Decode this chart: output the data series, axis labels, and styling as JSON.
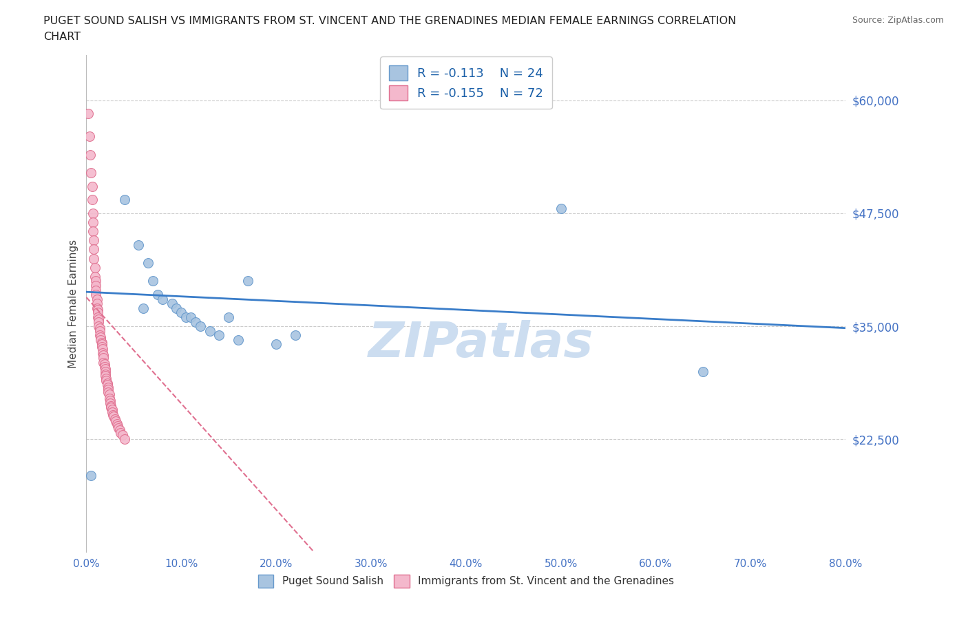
{
  "title_line1": "PUGET SOUND SALISH VS IMMIGRANTS FROM ST. VINCENT AND THE GRENADINES MEDIAN FEMALE EARNINGS CORRELATION",
  "title_line2": "CHART",
  "source_text": "Source: ZipAtlas.com",
  "ylabel": "Median Female Earnings",
  "xlim": [
    0,
    0.8
  ],
  "ylim": [
    10000,
    65000
  ],
  "yticks": [
    22500,
    35000,
    47500,
    60000
  ],
  "ytick_labels": [
    "$22,500",
    "$35,000",
    "$47,500",
    "$60,000"
  ],
  "xticks": [
    0.0,
    0.1,
    0.2,
    0.3,
    0.4,
    0.5,
    0.6,
    0.7,
    0.8
  ],
  "xtick_labels": [
    "0.0%",
    "",
    "",
    "",
    "",
    "",
    "",
    "",
    "80.0%"
  ],
  "blue_color": "#a8c4e0",
  "blue_edge": "#6699cc",
  "pink_color": "#f4b8cc",
  "pink_edge": "#e07090",
  "blue_R": "R = -0.113",
  "blue_N": "N = 24",
  "pink_R": "R = -0.155",
  "pink_N": "N = 72",
  "blue_label": "Puget Sound Salish",
  "pink_label": "Immigrants from St. Vincent and the Grenadines",
  "blue_x": [
    0.005,
    0.04,
    0.055,
    0.065,
    0.07,
    0.075,
    0.08,
    0.09,
    0.095,
    0.1,
    0.105,
    0.11,
    0.115,
    0.12,
    0.13,
    0.14,
    0.15,
    0.16,
    0.2,
    0.22,
    0.5,
    0.65,
    0.06,
    0.17
  ],
  "blue_y": [
    18500,
    49000,
    44000,
    42000,
    40000,
    38500,
    38000,
    37500,
    37000,
    36500,
    36000,
    36000,
    35500,
    35000,
    34500,
    34000,
    36000,
    33500,
    33000,
    34000,
    48000,
    30000,
    37000,
    40000
  ],
  "pink_x": [
    0.002,
    0.003,
    0.004,
    0.005,
    0.006,
    0.006,
    0.007,
    0.007,
    0.007,
    0.008,
    0.008,
    0.008,
    0.009,
    0.009,
    0.01,
    0.01,
    0.01,
    0.01,
    0.011,
    0.011,
    0.011,
    0.012,
    0.012,
    0.012,
    0.013,
    0.013,
    0.013,
    0.014,
    0.014,
    0.014,
    0.015,
    0.015,
    0.016,
    0.016,
    0.016,
    0.017,
    0.017,
    0.018,
    0.018,
    0.018,
    0.019,
    0.019,
    0.02,
    0.02,
    0.02,
    0.02,
    0.021,
    0.021,
    0.022,
    0.022,
    0.023,
    0.023,
    0.023,
    0.024,
    0.024,
    0.025,
    0.025,
    0.026,
    0.026,
    0.027,
    0.027,
    0.028,
    0.029,
    0.03,
    0.031,
    0.032,
    0.033,
    0.034,
    0.035,
    0.036,
    0.038,
    0.04
  ],
  "pink_y": [
    58500,
    56000,
    54000,
    52000,
    50500,
    49000,
    47500,
    46500,
    45500,
    44500,
    43500,
    42500,
    41500,
    40500,
    40000,
    39500,
    39000,
    38500,
    38000,
    37500,
    37000,
    36800,
    36500,
    36000,
    35800,
    35500,
    35000,
    34800,
    34500,
    34000,
    33800,
    33500,
    33200,
    33000,
    32700,
    32500,
    32000,
    31800,
    31500,
    31000,
    30800,
    30500,
    30300,
    30000,
    29700,
    29500,
    29200,
    29000,
    28700,
    28500,
    28200,
    28000,
    27700,
    27500,
    27000,
    26800,
    26500,
    26200,
    26000,
    25800,
    25500,
    25200,
    25000,
    24700,
    24500,
    24200,
    24000,
    23700,
    23500,
    23200,
    23000,
    22500
  ],
  "blue_trend_x": [
    0.0,
    0.8
  ],
  "blue_trend_y": [
    38800,
    34800
  ],
  "pink_trend_x": [
    0.0,
    0.24
  ],
  "pink_trend_y": [
    38200,
    10000
  ],
  "blue_trend_color": "#3a7dc9",
  "pink_trend_color": "#e07090",
  "grid_color": "#cccccc",
  "bg_color": "#ffffff",
  "title_color": "#222222",
  "ylabel_color": "#444444",
  "tick_color": "#4472c4",
  "source_color": "#666666",
  "watermark": "ZIPatlas",
  "watermark_color": "#ccddf0",
  "marker_size": 100
}
